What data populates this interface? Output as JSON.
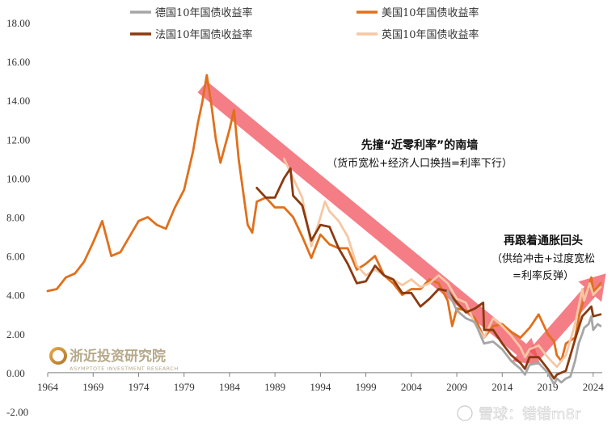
{
  "chart_data": {
    "type": "line",
    "title": "",
    "xlabel": "",
    "ylabel": "",
    "xlim": [
      1964,
      2025
    ],
    "ylim": [
      -2,
      18
    ],
    "yticks": [
      "-2.00",
      "0.00",
      "2.00",
      "4.00",
      "6.00",
      "8.00",
      "10.00",
      "12.00",
      "14.00",
      "16.00",
      "18.00"
    ],
    "xticks": [
      "1964",
      "1969",
      "1974",
      "1979",
      "1984",
      "1989",
      "1994",
      "1999",
      "2004",
      "2009",
      "2014",
      "2019",
      "2024"
    ],
    "legend_position": "top",
    "series": [
      {
        "name": "德国10年国债收益率",
        "color": "#a6a6a6",
        "x": [
          2008,
          2009,
          2010,
          2011,
          2012,
          2013,
          2014,
          2015,
          2016,
          2016.5,
          2017,
          2018,
          2019,
          2019.7,
          2020,
          2020.5,
          2021,
          2021.5,
          2022,
          2022.4,
          2022.8,
          2023,
          2023.5,
          2023.8,
          2024,
          2024.5,
          2024.8
        ],
        "values": [
          4.2,
          3.2,
          2.8,
          2.6,
          1.5,
          1.6,
          1.2,
          0.6,
          0.2,
          -0.1,
          0.4,
          0.5,
          0.0,
          -0.6,
          -0.3,
          -0.5,
          -0.3,
          -0.2,
          0.6,
          1.5,
          2.0,
          2.3,
          2.5,
          2.9,
          2.2,
          2.5,
          2.4
        ]
      },
      {
        "name": "美国10年国债收益率",
        "color": "#e0701c",
        "x": [
          1964,
          1965,
          1966,
          1967,
          1968,
          1969,
          1970,
          1971,
          1972,
          1973,
          1974,
          1975,
          1976,
          1977,
          1978,
          1979,
          1980,
          1980.5,
          1981,
          1981.5,
          1982,
          1982.5,
          1983,
          1984,
          1984.5,
          1985,
          1986,
          1986.5,
          1987,
          1988,
          1989,
          1990,
          1991,
          1992,
          1993,
          1994,
          1995,
          1996,
          1997,
          1998,
          1999,
          2000,
          2001,
          2002,
          2003,
          2004,
          2005,
          2006,
          2007,
          2008,
          2008.5,
          2009,
          2010,
          2011,
          2012,
          2013,
          2014,
          2015,
          2016,
          2017,
          2018,
          2019,
          2019.7,
          2020,
          2020.5,
          2021,
          2022,
          2022.5,
          2023,
          2023.8,
          2024,
          2024.5,
          2024.8
        ],
        "values": [
          4.2,
          4.3,
          4.9,
          5.1,
          5.7,
          6.7,
          7.8,
          6.0,
          6.2,
          7.0,
          7.8,
          8.0,
          7.6,
          7.4,
          8.5,
          9.4,
          11.4,
          12.8,
          13.9,
          15.3,
          13.8,
          12.0,
          10.8,
          12.5,
          13.5,
          11.0,
          7.6,
          7.2,
          8.8,
          9.0,
          8.5,
          8.5,
          8.0,
          7.0,
          5.9,
          7.1,
          6.6,
          6.4,
          6.4,
          5.3,
          5.6,
          6.0,
          5.0,
          4.6,
          4.0,
          4.3,
          4.3,
          4.8,
          4.6,
          3.7,
          2.4,
          3.3,
          3.2,
          2.8,
          1.8,
          2.4,
          2.5,
          2.1,
          1.8,
          2.3,
          3.0,
          2.0,
          1.6,
          0.9,
          0.6,
          1.5,
          1.8,
          3.0,
          3.8,
          4.9,
          4.2,
          4.4,
          4.6
        ]
      },
      {
        "name": "法国10年国债收益率",
        "color": "#8b3a0f",
        "x": [
          1987,
          1988,
          1989,
          1990,
          1990.7,
          1991,
          1992,
          1993,
          1994,
          1995,
          1996,
          1997,
          1998,
          1999,
          2000,
          2001,
          2002,
          2003,
          2004,
          2005,
          2006,
          2007,
          2008,
          2009,
          2010,
          2011,
          2011.9,
          2012,
          2013,
          2014,
          2015,
          2016,
          2016.5,
          2017,
          2018,
          2019,
          2019.7,
          2020,
          2021,
          2022,
          2022.8,
          2023,
          2023.8,
          2024,
          2024.8
        ],
        "values": [
          9.5,
          9.0,
          9.0,
          10.0,
          10.5,
          9.1,
          8.6,
          6.8,
          7.6,
          7.5,
          6.4,
          5.6,
          4.6,
          4.7,
          5.5,
          5.0,
          4.8,
          4.1,
          4.1,
          3.4,
          3.8,
          4.3,
          4.2,
          3.6,
          3.1,
          3.3,
          3.6,
          2.2,
          2.2,
          1.5,
          0.9,
          0.5,
          0.2,
          0.8,
          0.8,
          0.2,
          -0.3,
          -0.1,
          0.1,
          1.7,
          2.9,
          3.0,
          3.4,
          2.9,
          3.0
        ]
      },
      {
        "name": "英国10年国债收益率",
        "color": "#f6c7a3",
        "x": [
          1990,
          1991,
          1992,
          1993,
          1994,
          1994.5,
          1995,
          1996,
          1997,
          1998,
          1999,
          2000,
          2001,
          2002,
          2003,
          2004,
          2005,
          2006,
          2007,
          2008,
          2009,
          2010,
          2011,
          2012,
          2013,
          2014,
          2015,
          2016,
          2016.5,
          2017,
          2018,
          2019,
          2020,
          2021,
          2022,
          2022.8,
          2023,
          2023.6,
          2024,
          2024.8
        ],
        "values": [
          11.0,
          10.0,
          9.0,
          6.5,
          8.0,
          8.8,
          8.3,
          7.8,
          7.0,
          5.5,
          5.0,
          5.3,
          5.0,
          4.8,
          4.5,
          4.8,
          4.4,
          4.6,
          5.0,
          4.6,
          3.8,
          3.6,
          2.5,
          1.8,
          2.8,
          2.4,
          1.9,
          1.3,
          0.8,
          1.2,
          1.4,
          0.8,
          0.3,
          0.9,
          2.5,
          4.3,
          3.7,
          4.6,
          4.0,
          4.4
        ]
      }
    ],
    "annotations": [
      {
        "kind": "down-arrow",
        "from": [
          1981.0,
          14.7
        ],
        "to": [
          2018.2,
          0.4
        ]
      },
      {
        "kind": "up-arrow",
        "from": [
          2017.5,
          0.9
        ],
        "to": [
          2025.4,
          5.1
        ]
      }
    ]
  },
  "annotation_down": {
    "title": "先撞“近零利率”的南墙",
    "subtitle": "（货币宽松+经济人口换挡=利率下行）"
  },
  "annotation_up": {
    "title": "再跟着通胀回头",
    "subtitle_line1": "（供给冲击+过度宽松",
    "subtitle_line2": "=利率反弹）"
  },
  "logo": {
    "name": "浙近投资研究院",
    "tagline": "ASYMPTOTE INVESTMENT RESEARCH"
  },
  "watermark": "雪球：错错m8r"
}
